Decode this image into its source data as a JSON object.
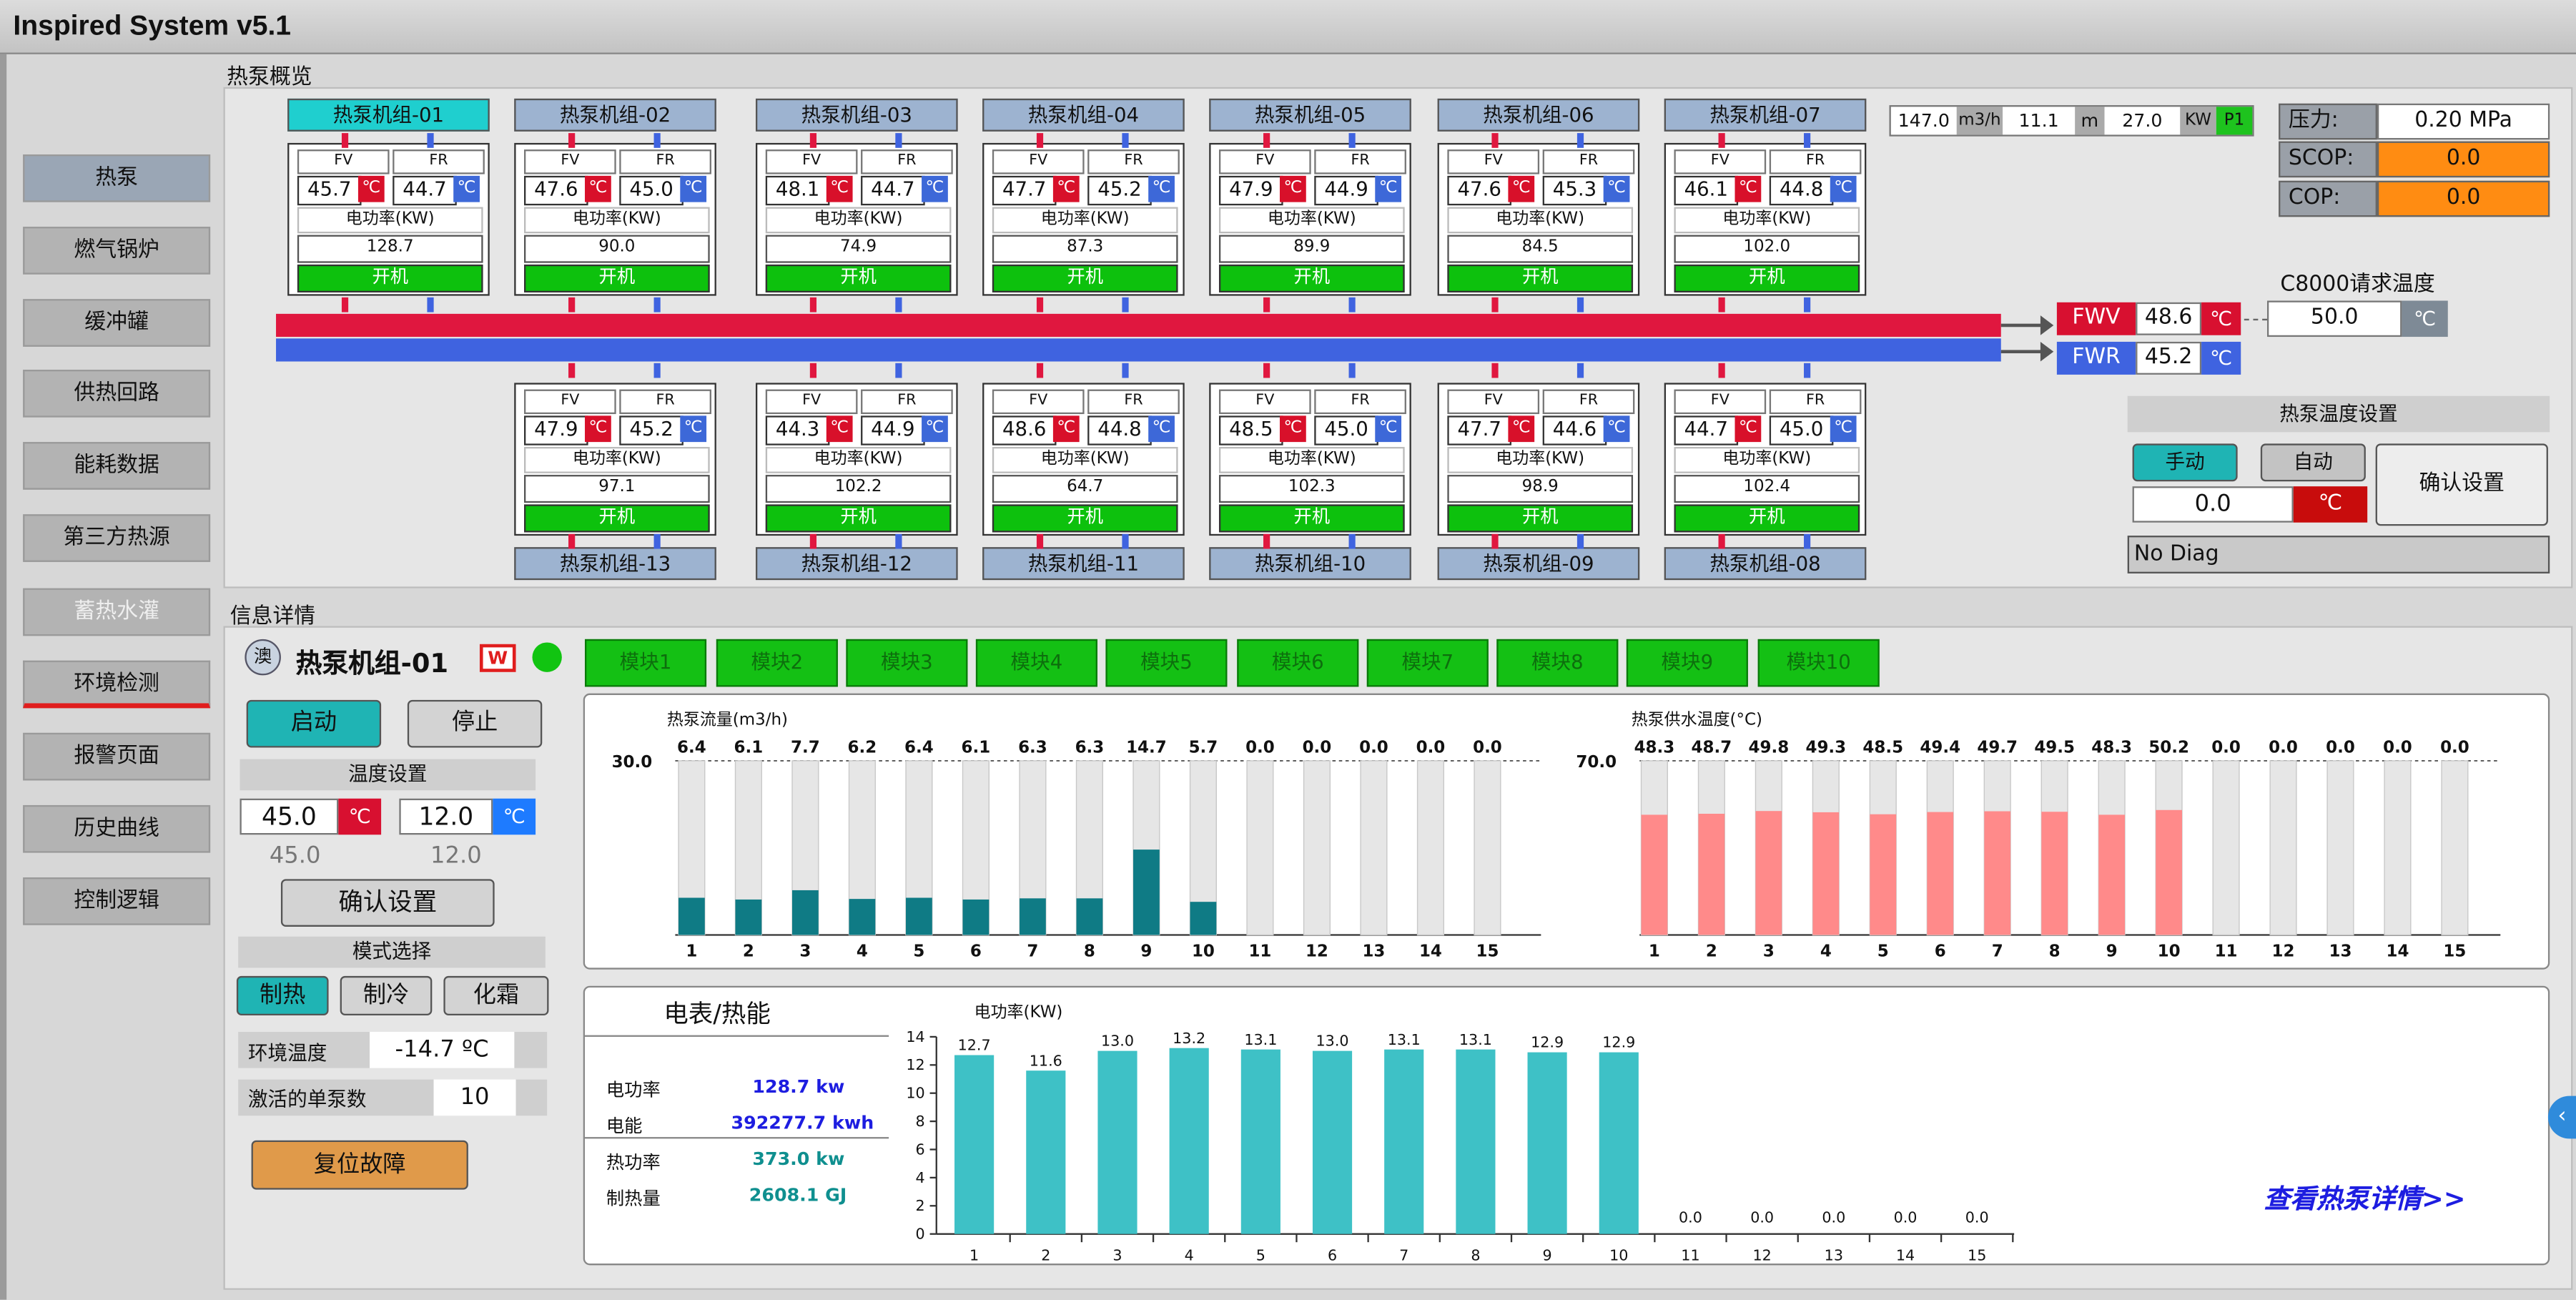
{
  "app": {
    "title": "Inspired System v5.1"
  },
  "nav": [
    {
      "label": "热泵",
      "state": "active"
    },
    {
      "label": "燃气锅炉",
      "state": ""
    },
    {
      "label": "缓冲罐",
      "state": ""
    },
    {
      "label": "供热回路",
      "state": ""
    },
    {
      "label": "能耗数据",
      "state": ""
    },
    {
      "label": "第三方热源",
      "state": ""
    },
    {
      "label": "蓄热水灌",
      "state": "disabled"
    },
    {
      "label": "环境检测",
      "state": "current"
    },
    {
      "label": "报警页面",
      "state": ""
    },
    {
      "label": "历史曲线",
      "state": ""
    },
    {
      "label": "控制逻辑",
      "state": ""
    }
  ],
  "overview": {
    "title": "热泵概览"
  },
  "units_top": [
    {
      "name": "热泵机组-01",
      "fv": "45.7",
      "fr": "44.7",
      "power": "128.7",
      "selected": true
    },
    {
      "name": "热泵机组-02",
      "fv": "47.6",
      "fr": "45.0",
      "power": "90.0"
    },
    {
      "name": "热泵机组-03",
      "fv": "48.1",
      "fr": "44.7",
      "power": "74.9"
    },
    {
      "name": "热泵机组-04",
      "fv": "47.7",
      "fr": "45.2",
      "power": "87.3"
    },
    {
      "name": "热泵机组-05",
      "fv": "47.9",
      "fr": "44.9",
      "power": "89.9"
    },
    {
      "name": "热泵机组-06",
      "fv": "47.6",
      "fr": "45.3",
      "power": "84.5"
    },
    {
      "name": "热泵机组-07",
      "fv": "46.1",
      "fr": "44.8",
      "power": "102.0"
    }
  ],
  "units_bottom": [
    {
      "name": "热泵机组-13",
      "fv": "47.9",
      "fr": "45.2",
      "power": "97.1"
    },
    {
      "name": "热泵机组-12",
      "fv": "44.3",
      "fr": "44.9",
      "power": "102.2"
    },
    {
      "name": "热泵机组-11",
      "fv": "48.6",
      "fr": "44.8",
      "power": "64.7"
    },
    {
      "name": "热泵机组-10",
      "fv": "48.5",
      "fr": "45.0",
      "power": "102.3"
    },
    {
      "name": "热泵机组-09",
      "fv": "47.7",
      "fr": "44.6",
      "power": "98.9"
    },
    {
      "name": "热泵机组-08",
      "fv": "44.7",
      "fr": "45.0",
      "power": "102.4"
    }
  ],
  "unit_labels": {
    "fv": "FV",
    "fr": "FR",
    "unit": "℃",
    "power_label": "电功率(KW)",
    "on": "开机"
  },
  "flow": {
    "v1": "147.0",
    "u1": "m3/h",
    "v2": "11.1",
    "u2": "m",
    "v3": "27.0",
    "u3": "KW",
    "tag": "P1"
  },
  "pressure": {
    "label": "压力:",
    "value": "0.20 MPa"
  },
  "scop": {
    "label": "SCOP:",
    "value": "0.0"
  },
  "cop": {
    "label": "COP:",
    "value": "0.0"
  },
  "c8000": {
    "label": "C8000请求温度",
    "value": "50.0",
    "unit": "℃"
  },
  "fwv": {
    "label": "FWV",
    "value": "48.6",
    "unit": "℃"
  },
  "fwr": {
    "label": "FWR",
    "value": "45.2",
    "unit": "℃"
  },
  "hp_temp": {
    "title": "热泵温度设置",
    "manual": "手动",
    "auto": "自动",
    "value": "0.0",
    "unit": "℃",
    "confirm": "确认设置",
    "diag": "No Diag"
  },
  "info": {
    "title": "信息详情"
  },
  "unit_detail": {
    "badge": "澳",
    "name": "热泵机组-01",
    "w": "W",
    "start": "启动",
    "stop": "停止",
    "temp_title": "温度设置",
    "t1": "45.0",
    "t2": "12.0",
    "unit1": "℃",
    "unit2": "℃",
    "t1_actual": "45.0",
    "t2_actual": "12.0",
    "confirm": "确认设置",
    "mode_title": "模式选择",
    "modes": [
      "制热",
      "制冷",
      "化霜"
    ],
    "env_label": "环境温度",
    "env_value": "-14.7 ºC",
    "active_label": "激活的单泵数",
    "active_value": "10",
    "reset": "复位故障"
  },
  "modules": [
    "模块1",
    "模块2",
    "模块3",
    "模块4",
    "模块5",
    "模块6",
    "模块7",
    "模块8",
    "模块9",
    "模块10"
  ],
  "meter": {
    "title": "电表/热能",
    "rows": [
      {
        "label": "电功率",
        "value": "128.7 kw"
      },
      {
        "label": "电能",
        "value": "392277.7 kwh"
      },
      {
        "label": "热功率",
        "value": "373.0 kw"
      },
      {
        "label": "制热量",
        "value": "2608.1 GJ"
      }
    ],
    "details_link": "查看热泵详情>>"
  },
  "chart_data": [
    {
      "type": "bar",
      "title": "热泵流量(m3/h)",
      "categories": [
        "1",
        "2",
        "3",
        "4",
        "5",
        "6",
        "7",
        "8",
        "9",
        "10",
        "11",
        "12",
        "13",
        "14",
        "15"
      ],
      "values": [
        6.4,
        6.1,
        7.7,
        6.2,
        6.4,
        6.1,
        6.3,
        6.3,
        14.7,
        5.7,
        0.0,
        0.0,
        0.0,
        0.0,
        0.0
      ],
      "ylim": [
        0,
        30
      ],
      "reference": {
        "label": "30.0",
        "value": 30
      },
      "color": "#0f7b85"
    },
    {
      "type": "bar",
      "title": "热泵供水温度(°C)",
      "categories": [
        "1",
        "2",
        "3",
        "4",
        "5",
        "6",
        "7",
        "8",
        "9",
        "10",
        "11",
        "12",
        "13",
        "14",
        "15"
      ],
      "values": [
        48.3,
        48.7,
        49.8,
        49.3,
        48.5,
        49.4,
        49.7,
        49.5,
        48.3,
        50.2,
        0.0,
        0.0,
        0.0,
        0.0,
        0.0
      ],
      "ylim": [
        0,
        70
      ],
      "reference": {
        "label": "70.0",
        "value": 70
      },
      "color": "#ff8a8a"
    },
    {
      "type": "bar",
      "title": "电功率(KW)",
      "categories": [
        "1",
        "2",
        "3",
        "4",
        "5",
        "6",
        "7",
        "8",
        "9",
        "10",
        "11",
        "12",
        "13",
        "14",
        "15"
      ],
      "values": [
        12.7,
        11.6,
        13.0,
        13.2,
        13.1,
        13.0,
        13.1,
        13.1,
        12.9,
        12.9,
        0.0,
        0.0,
        0.0,
        0.0,
        0.0
      ],
      "ylim": [
        0,
        14
      ],
      "yticks": [
        "0",
        "2",
        "4",
        "6",
        "8",
        "10",
        "12",
        "14"
      ],
      "color": "#3ec1c6"
    }
  ]
}
